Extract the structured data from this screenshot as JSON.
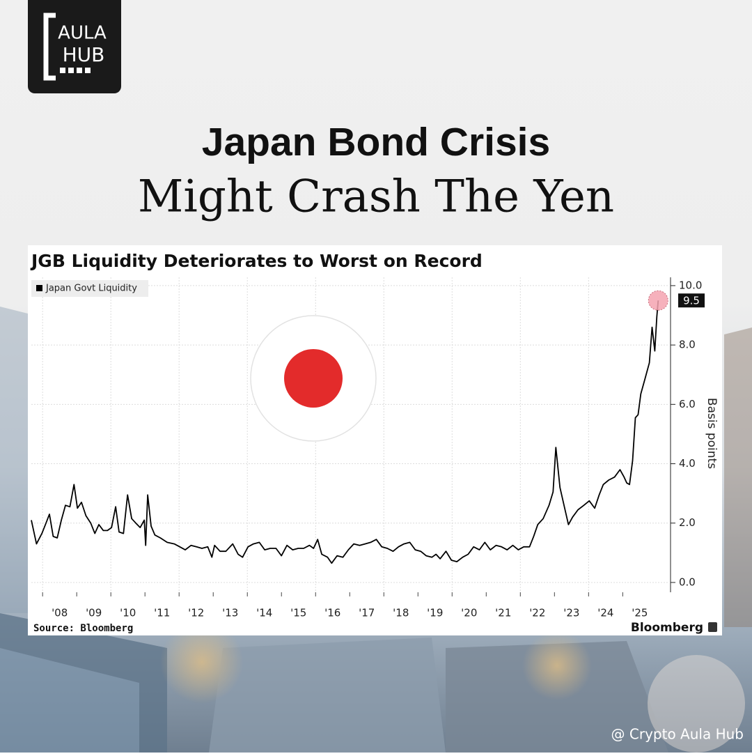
{
  "logo": {
    "line1": "AULA",
    "line2": "HUB"
  },
  "headline": {
    "line1": "Japan Bond Crisis",
    "line2": "Might Crash The Yen"
  },
  "watermark": "@ Crypto Aula Hub",
  "chart_data": {
    "type": "line",
    "title": "JGB Liquidity Deteriorates to Worst on Record",
    "source": "Source: Bloomberg",
    "brand": "Bloomberg",
    "y_axis_label": "Basis points",
    "x": [
      2007.67,
      2007.82,
      2007.98,
      2008.1,
      2008.2,
      2008.31,
      2008.43,
      2008.55,
      2008.67,
      2008.8,
      2008.92,
      2009.02,
      2009.14,
      2009.27,
      2009.41,
      2009.53,
      2009.65,
      2009.78,
      2009.9,
      2010.02,
      2010.14,
      2010.24,
      2010.37,
      2010.49,
      2010.61,
      2010.73,
      2010.86,
      2010.98,
      2011.02,
      2011.08,
      2011.18,
      2011.29,
      2011.45,
      2011.65,
      2011.86,
      2012.02,
      2012.18,
      2012.35,
      2012.51,
      2012.67,
      2012.84,
      2012.96,
      2013.04,
      2013.2,
      2013.37,
      2013.57,
      2013.73,
      2013.86,
      2014.02,
      2014.18,
      2014.35,
      2014.51,
      2014.67,
      2014.84,
      2015.0,
      2015.16,
      2015.33,
      2015.49,
      2015.65,
      2015.82,
      2015.94,
      2016.06,
      2016.18,
      2016.35,
      2016.47,
      2016.63,
      2016.8,
      2016.96,
      2017.12,
      2017.29,
      2017.45,
      2017.61,
      2017.78,
      2017.94,
      2018.1,
      2018.27,
      2018.43,
      2018.59,
      2018.76,
      2018.92,
      2019.08,
      2019.24,
      2019.41,
      2019.53,
      2019.65,
      2019.82,
      2019.98,
      2020.14,
      2020.31,
      2020.47,
      2020.63,
      2020.8,
      2020.96,
      2021.12,
      2021.29,
      2021.45,
      2021.61,
      2021.78,
      2021.94,
      2022.1,
      2022.27,
      2022.39,
      2022.51,
      2022.67,
      2022.84,
      2022.96,
      2023.04,
      2023.16,
      2023.29,
      2023.41,
      2023.53,
      2023.69,
      2023.86,
      2024.02,
      2024.18,
      2024.31,
      2024.43,
      2024.59,
      2024.76,
      2024.92,
      2025.04,
      2025.12,
      2025.2,
      2025.29,
      2025.37,
      2025.45,
      2025.53,
      2025.65,
      2025.78,
      2025.86,
      2025.94,
      2026.0,
      2026.04
    ],
    "series": [
      {
        "name": "Japan Govt Liquidity",
        "color": "#000000",
        "values": [
          2.1,
          1.3,
          1.65,
          2.0,
          2.3,
          1.55,
          1.5,
          2.1,
          2.6,
          2.55,
          3.3,
          2.5,
          2.7,
          2.25,
          2.0,
          1.65,
          1.95,
          1.75,
          1.75,
          1.85,
          2.55,
          1.7,
          1.65,
          2.95,
          2.15,
          2.0,
          1.85,
          2.1,
          1.25,
          2.95,
          1.9,
          1.6,
          1.5,
          1.35,
          1.3,
          1.2,
          1.1,
          1.25,
          1.2,
          1.15,
          1.2,
          0.85,
          1.25,
          1.05,
          1.05,
          1.3,
          0.95,
          0.85,
          1.2,
          1.3,
          1.35,
          1.1,
          1.15,
          1.15,
          0.9,
          1.25,
          1.1,
          1.15,
          1.15,
          1.25,
          1.15,
          1.45,
          0.95,
          0.85,
          0.65,
          0.9,
          0.85,
          1.1,
          1.3,
          1.25,
          1.3,
          1.35,
          1.45,
          1.2,
          1.15,
          1.05,
          1.2,
          1.3,
          1.35,
          1.1,
          1.05,
          0.9,
          0.85,
          0.95,
          0.8,
          1.05,
          0.75,
          0.7,
          0.85,
          0.95,
          1.2,
          1.1,
          1.35,
          1.1,
          1.25,
          1.2,
          1.1,
          1.25,
          1.1,
          1.2,
          1.2,
          1.55,
          1.95,
          2.15,
          2.6,
          3.05,
          4.55,
          3.2,
          2.55,
          1.95,
          2.2,
          2.45,
          2.6,
          2.75,
          2.5,
          2.95,
          3.3,
          3.45,
          3.55,
          3.8,
          3.55,
          3.35,
          3.3,
          4.1,
          5.55,
          5.65,
          6.35,
          6.85,
          7.4,
          8.6,
          7.8,
          8.95,
          9.5
        ]
      }
    ],
    "xlim": [
      2007.67,
      2026.34
    ],
    "xticks": [
      {
        "value": 2008,
        "label": "'08"
      },
      {
        "value": 2009,
        "label": "'09"
      },
      {
        "value": 2010,
        "label": "'10"
      },
      {
        "value": 2011,
        "label": "'11"
      },
      {
        "value": 2012,
        "label": "'12"
      },
      {
        "value": 2013,
        "label": "'13"
      },
      {
        "value": 2014,
        "label": "'14"
      },
      {
        "value": 2015,
        "label": "'15"
      },
      {
        "value": 2016,
        "label": "'16"
      },
      {
        "value": 2017,
        "label": "'17"
      },
      {
        "value": 2018,
        "label": "'18"
      },
      {
        "value": 2019,
        "label": "'19"
      },
      {
        "value": 2020,
        "label": "'20"
      },
      {
        "value": 2021,
        "label": "'21"
      },
      {
        "value": 2022,
        "label": "'22"
      },
      {
        "value": 2023,
        "label": "'23"
      },
      {
        "value": 2024,
        "label": "'24"
      },
      {
        "value": 2025,
        "label": "'25"
      }
    ],
    "ylim": [
      -0.33,
      10.28
    ],
    "yticks": [
      {
        "value": 0,
        "label": "0.0"
      },
      {
        "value": 2,
        "label": "2.0"
      },
      {
        "value": 4,
        "label": "4.0"
      },
      {
        "value": 6,
        "label": "6.0"
      },
      {
        "value": 8,
        "label": "8.0"
      },
      {
        "value": 10,
        "label": "10.0"
      }
    ],
    "grid": true,
    "legend": "top-left"
  }
}
